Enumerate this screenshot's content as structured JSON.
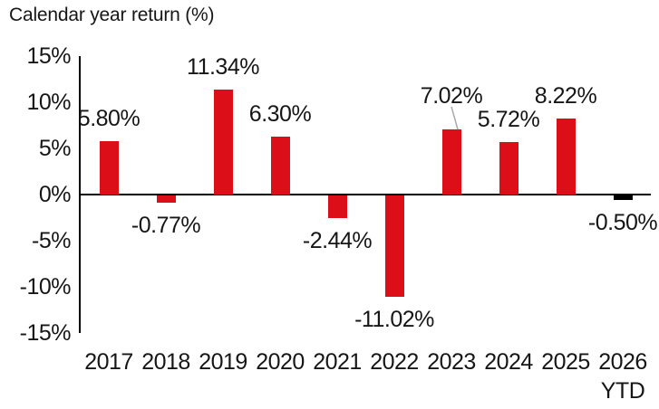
{
  "chart_data": {
    "type": "bar",
    "title": "Calendar year return (%)",
    "xlabel": "",
    "ylabel": "Calendar year return (%)",
    "ylim": [
      -15,
      15
    ],
    "grid": false,
    "legend_position": "none",
    "bar_color": "#dc0f19",
    "ytd_bar_color": "#000000",
    "callout_line_color": "#a9a9a9",
    "text_color": "#161616",
    "y_ticks": [
      {
        "label": "15%",
        "value": 15
      },
      {
        "label": "10%",
        "value": 10
      },
      {
        "label": "5%",
        "value": 5
      },
      {
        "label": "0%",
        "value": 0
      },
      {
        "label": "-5%",
        "value": -5
      },
      {
        "label": "-10%",
        "value": -10
      },
      {
        "label": "-15%",
        "value": -15
      }
    ],
    "categories": [
      "2017",
      "2018",
      "2019",
      "2020",
      "2021",
      "2022",
      "2023",
      "2024",
      "2025",
      "2026"
    ],
    "points": [
      {
        "category": "2017",
        "value": 5.8,
        "label": "5.80%"
      },
      {
        "category": "2018",
        "value": -0.77,
        "label": "-0.77%"
      },
      {
        "category": "2019",
        "value": 11.34,
        "label": "11.34%"
      },
      {
        "category": "2020",
        "value": 6.3,
        "label": "6.30%"
      },
      {
        "category": "2021",
        "value": -2.44,
        "label": "-2.44%"
      },
      {
        "category": "2022",
        "value": -11.02,
        "label": "-11.02%"
      },
      {
        "category": "2023",
        "value": 7.02,
        "label": "7.02%",
        "callout": true
      },
      {
        "category": "2024",
        "value": 5.72,
        "label": "5.72%"
      },
      {
        "category": "2025",
        "value": 8.22,
        "label": "8.22%"
      },
      {
        "category": "2026",
        "category_line2": "YTD",
        "value": -0.5,
        "label": "-0.50%",
        "color": "#000000"
      }
    ]
  }
}
